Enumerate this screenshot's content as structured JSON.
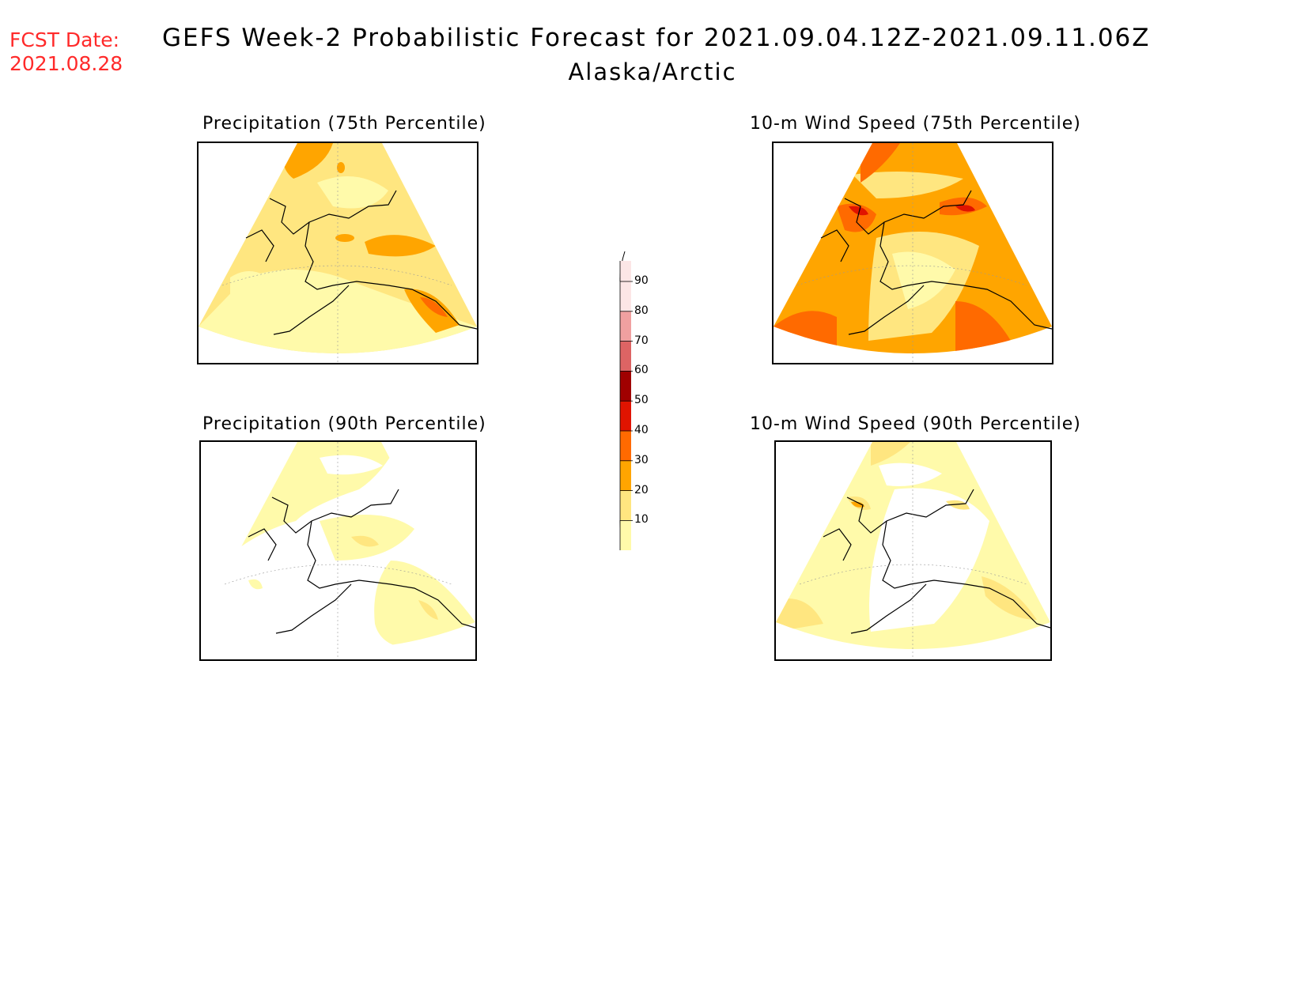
{
  "header": {
    "fcst_label": "FCST Date:",
    "fcst_date": "2021.08.28",
    "title": "GEFS Week-2 Probabilistic Forecast for 2021.09.04.12Z-2021.09.11.06Z",
    "region": "Alaska/Arctic"
  },
  "panels": [
    {
      "title": "Precipitation (75th Percentile)"
    },
    {
      "title": "10-m Wind Speed (75th Percentile)"
    },
    {
      "title": "Precipitation (90th Percentile)"
    },
    {
      "title": "10-m Wind Speed (90th Percentile)"
    }
  ],
  "legend": {
    "levels": [
      "10",
      "20",
      "30",
      "40",
      "50",
      "60",
      "70",
      "80",
      "90"
    ],
    "colors": {
      "below_10": "#ffffff",
      "10-20": "#fffaaa",
      "20-30": "#ffe680",
      "30-40": "#ffa500",
      "40-50": "#ff6a00",
      "50-60": "#e01400",
      "60-70": "#a00000",
      "70-80": "#dd6464",
      "80-90": "#f0a0a0",
      "above_90": "#fce6e6"
    }
  }
}
